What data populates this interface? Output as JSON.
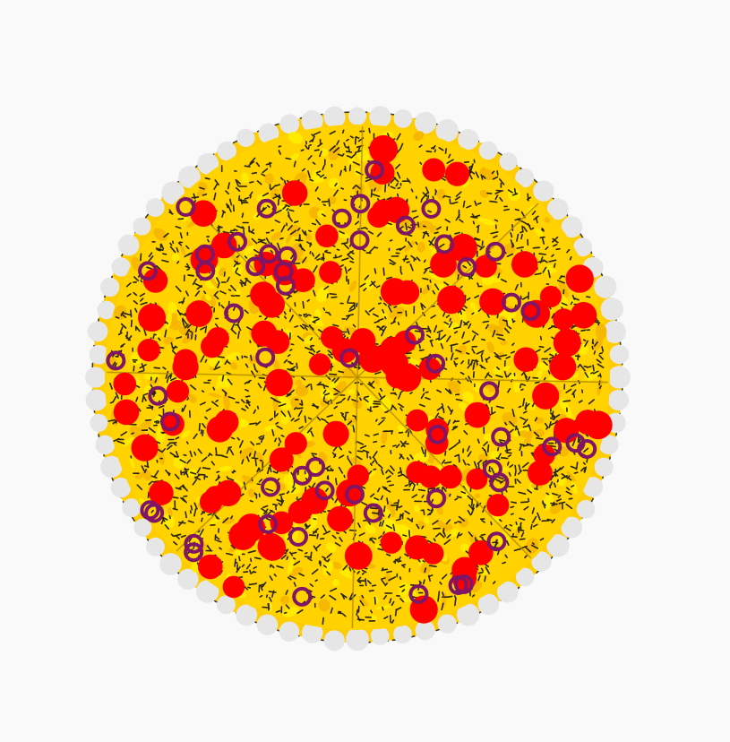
{
  "scene": {
    "background_color": "#f9f9f9",
    "subject": "pizza-illustration",
    "slice_count": 8
  },
  "pizza": {
    "crust_color": "#e6e6e6",
    "crust_outline_color": "#333333",
    "cheese_color": "#ffd200",
    "cheese_highlight_color": "#ffee00",
    "cheese_shadow_color": "#f5b400",
    "herb_color": "#111111",
    "slice_line_color": "#b38a00"
  },
  "toppings": {
    "pepperoni": {
      "color": "#ff0000",
      "count": 105
    },
    "onion_rings": {
      "color": "#7e1566",
      "count": 56
    }
  }
}
